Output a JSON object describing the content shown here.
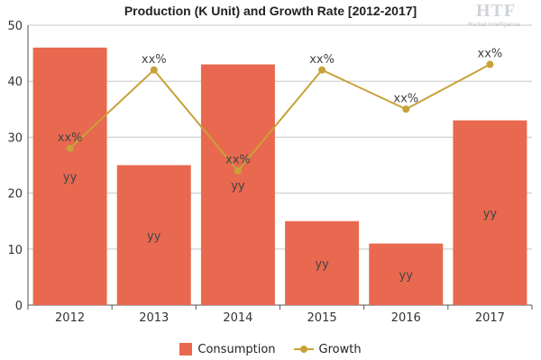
{
  "chart_data": {
    "type": "bar",
    "title": "Production (K Unit) and Growth Rate [2012-2017]",
    "categories": [
      "2012",
      "2013",
      "2014",
      "2015",
      "2016",
      "2017"
    ],
    "series": [
      {
        "name": "Consumption",
        "type": "bar",
        "values": [
          46,
          25,
          43,
          15,
          11,
          33
        ],
        "color": "#e8694f",
        "point_label": "yy"
      },
      {
        "name": "Growth",
        "type": "line",
        "values": [
          28,
          42,
          24,
          42,
          35,
          43
        ],
        "color": "#c9a13a",
        "point_label": "xx%"
      }
    ],
    "y_ticks": [
      "0",
      "10",
      "20",
      "30",
      "40",
      "50"
    ],
    "ylim": [
      0,
      50
    ],
    "grid": true,
    "legend_position": "bottom"
  },
  "logo": {
    "text": "HTF",
    "subtext": "Market Intelligence"
  }
}
